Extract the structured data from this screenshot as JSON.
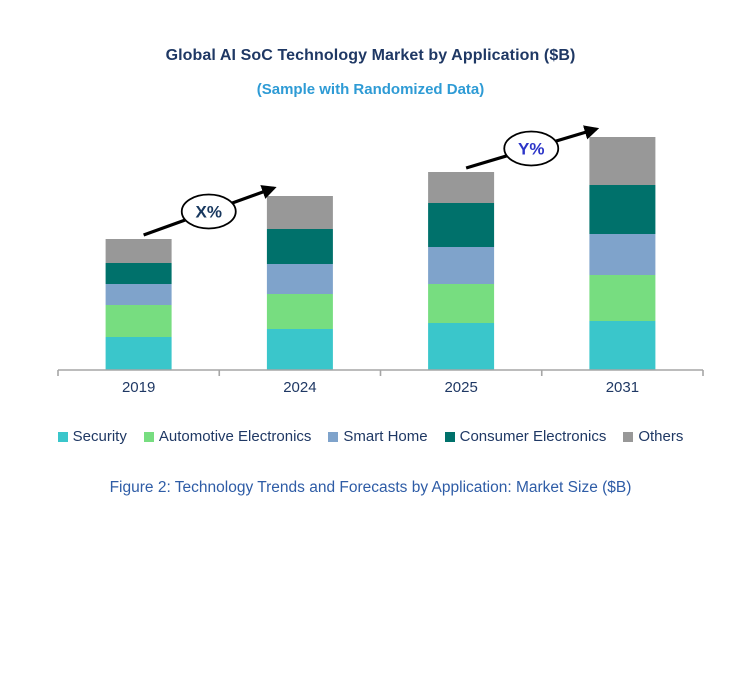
{
  "page": {
    "title": "Global AI SoC Technology Market by Application ($B)",
    "subtitle": "(Sample with Randomized Data)",
    "caption": "Figure 2: Technology Trends and Forecasts by Application: Market Size ($B)"
  },
  "colors": {
    "title_text": "#1F3864",
    "subtitle_text": "#2E9BD5",
    "caption_text": "#2E5CA6",
    "axis_line": "#A6A6A6",
    "axis_label_text": "#1F3864",
    "legend_text": "#1F3864",
    "arrow": "#000000",
    "annotation_border": "#000000",
    "annotation_fill": "#FFFFFF"
  },
  "chart_data": {
    "type": "bar",
    "stacked": true,
    "title": "Global AI SoC Technology Market by Application ($B)",
    "xlabel": "",
    "ylabel": "",
    "categories": [
      "2019",
      "2024",
      "2025",
      "2031"
    ],
    "series": [
      {
        "name": "Security",
        "color": "#3AC6CB",
        "values": [
          3.3,
          4.1,
          4.7,
          4.9
        ]
      },
      {
        "name": "Automotive Electronics",
        "color": "#77DD80",
        "values": [
          3.2,
          3.5,
          3.9,
          4.6
        ]
      },
      {
        "name": "Smart Home",
        "color": "#7FA3CB",
        "values": [
          2.1,
          3.0,
          3.7,
          4.1
        ]
      },
      {
        "name": "Consumer Electronics",
        "color": "#00716B",
        "values": [
          2.1,
          3.5,
          4.4,
          4.9
        ]
      },
      {
        "name": "Others",
        "color": "#989898",
        "values": [
          2.4,
          3.3,
          3.1,
          4.8
        ]
      }
    ],
    "ylim": [
      0,
      26
    ],
    "y_axis_visible": false,
    "gridlines": false,
    "legend_position": "bottom",
    "annotations": [
      {
        "label": "X%",
        "from_category": "2019",
        "to_category": "2024",
        "text_color": "#17375E"
      },
      {
        "label": "Y%",
        "from_category": "2025",
        "to_category": "2031",
        "text_color": "#2C35C8"
      }
    ]
  }
}
